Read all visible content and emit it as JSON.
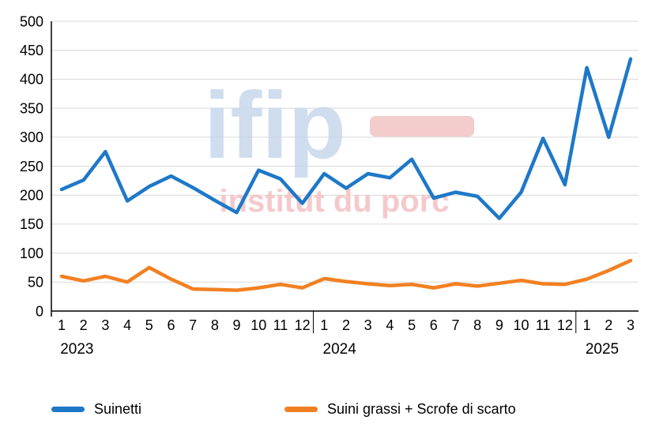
{
  "chart_data": {
    "type": "line",
    "title": "",
    "x_categories": [
      "1",
      "2",
      "3",
      "4",
      "5",
      "6",
      "7",
      "8",
      "9",
      "10",
      "11",
      "12",
      "1",
      "2",
      "3",
      "4",
      "5",
      "6",
      "7",
      "8",
      "9",
      "10",
      "11",
      "12",
      "1",
      "2",
      "3"
    ],
    "year_groups": [
      {
        "label": "2023",
        "start": 0,
        "count": 12
      },
      {
        "label": "2024",
        "start": 12,
        "count": 12
      },
      {
        "label": "2025",
        "start": 24,
        "count": 3
      }
    ],
    "ylim": [
      0,
      500
    ],
    "ytick_step": 50,
    "grid": true,
    "legend_position": "bottom",
    "series": [
      {
        "name": "Suinetti",
        "color": "#1E78C8",
        "values": [
          210,
          226,
          275,
          190,
          215,
          233,
          213,
          191,
          170,
          243,
          228,
          186,
          237,
          212,
          237,
          230,
          262,
          195,
          205,
          198,
          160,
          205,
          298,
          218,
          420,
          300,
          435
        ]
      },
      {
        "name": "Suini grassi + Scrofe di scarto",
        "color": "#F28022",
        "values": [
          60,
          52,
          60,
          50,
          75,
          55,
          38,
          37,
          36,
          40,
          46,
          40,
          56,
          51,
          47,
          44,
          46,
          40,
          47,
          43,
          48,
          53,
          47,
          46,
          55,
          70,
          87
        ]
      }
    ]
  },
  "watermark": {
    "main": "ifip",
    "sub": "institut du porc",
    "main_color": "#C4D5EB",
    "sub_color": "#F5C4C6",
    "dash_color": "#E89A9A"
  },
  "axis": {
    "grid_color": "#D9D9D9",
    "axis_color": "#000000",
    "label_color": "#000000"
  }
}
